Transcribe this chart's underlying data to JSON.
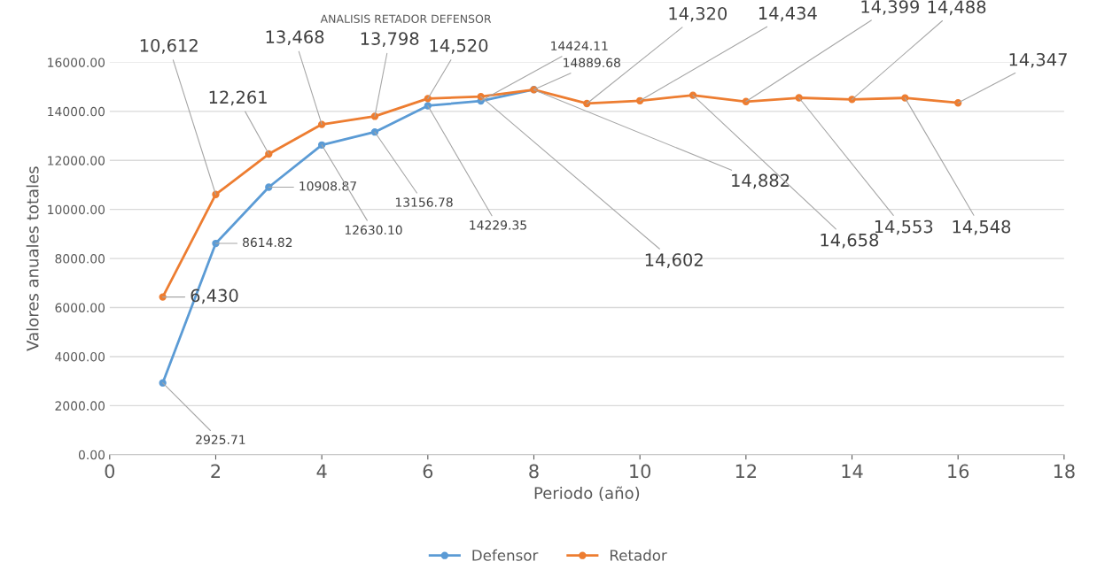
{
  "chart_data": {
    "type": "line",
    "title": "ANALISIS RETADOR DEFENSOR",
    "xlabel": "Periodo (año)",
    "ylabel": "Valores anuales totales",
    "xlim": [
      0,
      18
    ],
    "xticks": [
      0,
      2,
      4,
      6,
      8,
      10,
      12,
      14,
      16,
      18
    ],
    "ylim": [
      0,
      16000
    ],
    "yticks": [
      {
        "value": 0,
        "label": "0.00"
      },
      {
        "value": 2000,
        "label": "2000.00"
      },
      {
        "value": 4000,
        "label": "4000.00"
      },
      {
        "value": 6000,
        "label": "6000.00"
      },
      {
        "value": 8000,
        "label": "8000.00"
      },
      {
        "value": 10000,
        "label": "10000.00"
      },
      {
        "value": 12000,
        "label": "12000.00"
      },
      {
        "value": 14000,
        "label": "14000.00"
      },
      {
        "value": 16000,
        "label": "16000.00"
      }
    ],
    "grid": "y",
    "legend": "bottom",
    "marker": "circle",
    "line_style": "solid",
    "series": [
      {
        "name": "Defensor",
        "color": "#5b9bd5",
        "x": [
          1,
          2,
          3,
          4,
          5,
          6,
          7,
          8
        ],
        "values": [
          2925.71,
          8614.82,
          10908.87,
          12630.1,
          13156.78,
          14229.35,
          14424.11,
          14889.68
        ],
        "value_labels": [
          "2925.71",
          "8614.82",
          "10908.87",
          "12630.10",
          "13156.78",
          "14229.35",
          "14424.11",
          "14889.68"
        ]
      },
      {
        "name": "Retador",
        "color": "#ed7d31",
        "x": [
          1,
          2,
          3,
          4,
          5,
          6,
          7,
          8,
          9,
          10,
          11,
          12,
          13,
          14,
          15,
          16
        ],
        "values": [
          6430,
          10612,
          12261,
          13468,
          13798,
          14520,
          14602,
          14882,
          14320,
          14434,
          14658,
          14399,
          14553,
          14488,
          14548,
          14347
        ],
        "value_labels": [
          "6,430",
          "10,612",
          "12,261",
          "13,468",
          "13,798",
          "14,520",
          "14,602",
          "14,882",
          "14,320",
          "14,434",
          "14,658",
          "14,399",
          "14,553",
          "14,488",
          "14,548",
          "14,347"
        ]
      }
    ]
  }
}
